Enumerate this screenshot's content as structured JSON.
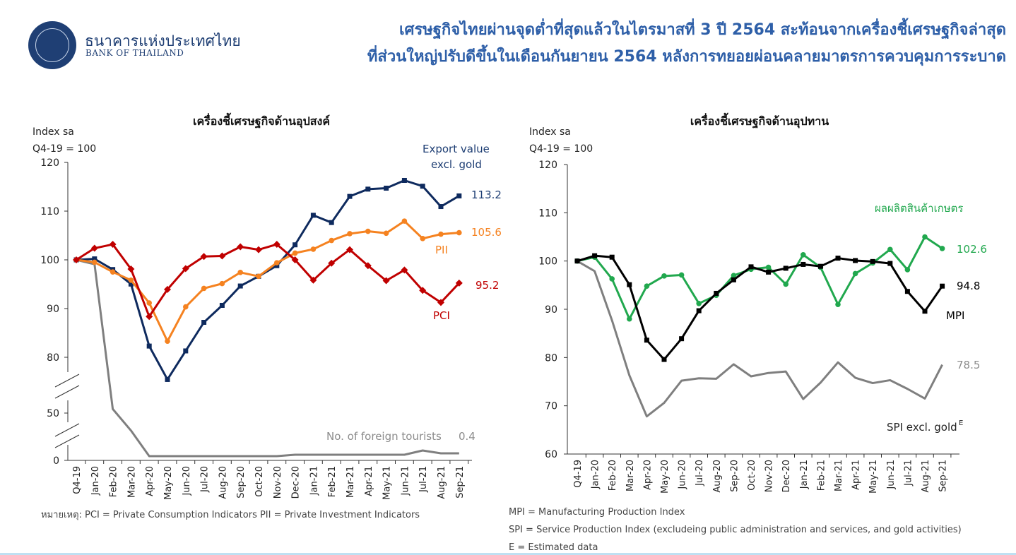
{
  "header": {
    "logo_th": "ธนาคารแห่งประเทศไทย",
    "logo_en": "BANK OF THAILAND",
    "headline_line1": "เศรษฐกิจไทยผ่านจุดต่ำที่สุดแล้วในไตรมาสที่ 3 ปี 2564 สะท้อนจากเครื่องชี้เศรษฐกิจล่าสุด",
    "headline_line2": "ที่ส่วนใหญ่ปรับดีขึ้นในเดือนกันยายน 2564 หลังการทยอยผ่อนคลายมาตรการควบคุมการระบาด"
  },
  "notes": {
    "left": "หมายเหตุ: PCI = Private Consumption Indicators    PII = Private Investment Indicators",
    "right1": "MPI = Manufacturing Production Index",
    "right2": "SPI = Service Production Index (excludeing public administration and services, and gold activities)",
    "right3": "E = Estimated data"
  },
  "chart_data": [
    {
      "type": "line",
      "title": "เครื่องชี้เศรษฐกิจด้านอุปสงค์",
      "ylabel_line1": "Index sa",
      "ylabel_line2": "Q4-19 = 100",
      "y_ticks": [
        "120",
        "110",
        "100",
        "90",
        "80",
        "50",
        "0"
      ],
      "y_axis_break": "broken axis between 80 and 50, and between 50 and 0",
      "categories": [
        "Q4-19",
        "Jan-20",
        "Feb-20",
        "Mar-20",
        "Apr-20",
        "May-20",
        "Jun-20",
        "Jul-20",
        "Aug-20",
        "Sep-20",
        "Oct-20",
        "Nov-20",
        "Dec-20",
        "Jan-21",
        "Feb-21",
        "Mar-21",
        "Apr-21",
        "May-21",
        "Jun-21",
        "Jul-21",
        "Aug-21",
        "Sep-21"
      ],
      "series": [
        {
          "name": "Export value excl. gold",
          "label_line1": "Export value",
          "label_line2": "excl. gold",
          "color": "#0e2a5e",
          "marker": "square",
          "end_label": "113.2",
          "values": [
            100,
            100.2,
            98,
            95,
            82.2,
            75.3,
            81.2,
            87.1,
            90.6,
            94.6,
            96.6,
            98.8,
            103.1,
            109.2,
            107.7,
            113.1,
            114.6,
            114.8,
            116.4,
            115.2,
            111,
            113.2
          ]
        },
        {
          "name": "PII",
          "label": "PII",
          "color": "#f58220",
          "marker": "circle",
          "end_label": "105.6",
          "values": [
            100,
            99.5,
            97.5,
            95.8,
            91.1,
            83.2,
            90.3,
            94.1,
            95.1,
            97.4,
            96.6,
            99.4,
            101.4,
            102.2,
            104,
            105.4,
            105.9,
            105.5,
            108,
            104.4,
            105.3,
            105.6
          ]
        },
        {
          "name": "PCI",
          "label": "PCI",
          "color": "#c00000",
          "marker": "diamond",
          "end_label": "95.2",
          "values": [
            100,
            102.4,
            103.2,
            98.1,
            88.3,
            93.9,
            98.2,
            100.7,
            100.8,
            102.7,
            102.1,
            103.2,
            100,
            95.8,
            99.3,
            102.1,
            98.8,
            95.7,
            97.9,
            93.7,
            91.2,
            95.2
          ]
        },
        {
          "name": "No. of foreign tourists",
          "label": "No. of foreign tourists",
          "color": "#7f7f7f",
          "marker": "none",
          "end_label": "0.4",
          "values": [
            100,
            99.1,
            52.2,
            26.1,
            0.2,
            0.2,
            0.2,
            0.2,
            0.2,
            0.2,
            0.2,
            0.2,
            0.3,
            0.3,
            0.3,
            0.3,
            0.3,
            0.3,
            0.3,
            0.6,
            0.4,
            0.4
          ]
        }
      ]
    },
    {
      "type": "line",
      "title": "เครื่องชี้เศรษฐกิจด้านอุปทาน",
      "ylabel_line1": "Index sa",
      "ylabel_line2": "Q4-19 = 100",
      "ylim": [
        60,
        120
      ],
      "y_ticks": [
        "120",
        "110",
        "100",
        "90",
        "80",
        "70",
        "60"
      ],
      "categories": [
        "Q4-19",
        "Jan-20",
        "Feb-20",
        "Mar-20",
        "Apr-20",
        "May-20",
        "Jun-20",
        "Jul-20",
        "Aug-20",
        "Sep-20",
        "Oct-20",
        "Nov-20",
        "Dec-20",
        "Jan-21",
        "Feb-21",
        "Mar-21",
        "Apr-21",
        "May-21",
        "Jun-21",
        "Jul-21",
        "Aug-21",
        "Sep-21"
      ],
      "series": [
        {
          "name": "ผลผลิตสินค้าเกษตร",
          "label": "ผลผลิตสินค้าเกษตร",
          "color": "#21a84e",
          "marker": "circle",
          "end_label": "102.6",
          "values": [
            100,
            100.8,
            96.3,
            88,
            94.8,
            96.9,
            97.1,
            91.2,
            92.9,
            97,
            98.3,
            98.7,
            95.2,
            101.3,
            98.7,
            91,
            97.4,
            99.6,
            102.4,
            98.2,
            105,
            102.6
          ]
        },
        {
          "name": "MPI",
          "label": "MPI",
          "color": "#000000",
          "marker": "square",
          "end_label": "94.8",
          "values": [
            100,
            101.1,
            100.8,
            95.1,
            83.6,
            79.6,
            83.9,
            89.7,
            93.3,
            96.1,
            98.8,
            97.7,
            98.5,
            99.3,
            98.9,
            100.6,
            100.1,
            99.9,
            99.5,
            93.7,
            89.6,
            94.8
          ]
        },
        {
          "name": "SPI excl. gold",
          "label": "SPI excl. gold",
          "label_sup": "E",
          "color": "#7f7f7f",
          "marker": "none",
          "end_label": "78.5",
          "values": [
            100,
            97.9,
            87.7,
            76.3,
            67.8,
            70.6,
            75.2,
            75.7,
            75.6,
            78.6,
            76.1,
            76.8,
            77.1,
            71.4,
            74.8,
            79,
            75.8,
            74.7,
            75.3,
            73.5,
            71.5,
            78.5
          ]
        }
      ]
    }
  ]
}
